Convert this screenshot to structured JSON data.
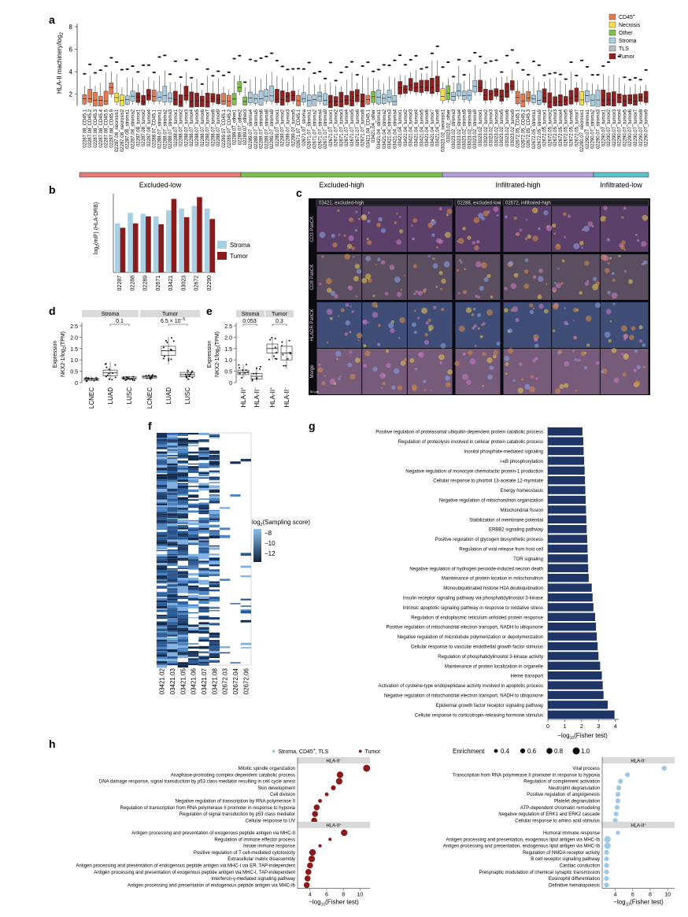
{
  "panels": {
    "a": "a",
    "b": "b",
    "c": "c",
    "d": "d",
    "e": "e",
    "f": "f",
    "g": "g",
    "h": "h"
  },
  "panel_a": {
    "ylabel": "HLA-II machinery/log",
    "ylabel_sub": "2",
    "yticks": [
      "2",
      "4",
      "6",
      "8"
    ],
    "legend": [
      {
        "label": "CD45",
        "sup": "+",
        "color": "#e07b54"
      },
      {
        "label": "Necrosis",
        "sup": "",
        "color": "#f4e04d"
      },
      {
        "label": "Other",
        "sup": "",
        "color": "#7fbf4d"
      },
      {
        "label": "Stroma",
        "sup": "",
        "color": "#a8cbe0"
      },
      {
        "label": "TLS",
        "sup": "",
        "color": "#bdbdbd"
      },
      {
        "label": "Tumor",
        "sup": "",
        "color": "#8b2222"
      }
    ],
    "samples": [
      "02287.08_CD45.1",
      "02287.08_CD45.2",
      "02287.08_CD45.3",
      "02287.08_CD45.4",
      "02287.08_CD45.5",
      "02287.08_CD45.9",
      "02287.08_necrosis1",
      "02287.08_necrosis2",
      "02287.08_stroma1",
      "02287.08_stroma2",
      "02287.08_tumor1",
      "02287.08_tumor2",
      "02287.08_tumor4",
      "02288.07_CD45.1",
      "02288.07_stroma1",
      "02288.07_stroma2",
      "02288.07_stroma3",
      "02288.07_tumor1",
      "02288.07_tumor2",
      "02288.07_tumor3",
      "02288.07_tumor4",
      "02288.07_tumor5",
      "02288.07_tumor6",
      "02288.07_tumor7",
      "02288.07_tumor8",
      "02288.07_tumor9",
      "02289.07_CD45.1",
      "02289.07_CD45.2",
      "02289.07_other1",
      "02289.07_other2",
      "02289.07_other3",
      "02289.07_stroma4",
      "02289.07_stroma5",
      "02289.07_stroma6",
      "02289.07_stroma8",
      "02289.07_stroma9",
      "02289.07_tumor1",
      "02289.07_tumor2",
      "02289.07_tumor3",
      "02289.07_tumor5",
      "02671.07_CD45.1",
      "02671.07_stroma",
      "02671.07_stroma1",
      "02671.07_stroma2",
      "02671.07_stroma4",
      "02671.07_stroma9",
      "02671.07_tumor1",
      "02671.07_tumor2",
      "02671.07_tumor3",
      "02671.07_tumor4",
      "02671.07_tumor5",
      "02671.07_tumor6",
      "02671.07_tumor8",
      "03421.04_CD45.1",
      "03421.04_other",
      "03421.04_stroma1",
      "03421.04_stroma2",
      "03421.04_stroma3",
      "03421.04_stroma4",
      "03421.04_tumor1",
      "03421.04_tumor2",
      "03421.04_tumor3",
      "03421.04_tumor4",
      "03421.04_tumor5",
      "03421.04_tumor6",
      "03421.04_tumor7",
      "03421.04_tumor8",
      "03023.02_necrosis1",
      "03023.02_other",
      "03023.02_stroma3",
      "03023.02_stroma4",
      "03023.02_stroma5",
      "03023.02_stroma8",
      "03023.02_stroma9",
      "03023.02_tumor1",
      "03023.02_tumor2",
      "03023.02_tumor3",
      "03023.02_tumor4",
      "03023.02_tumor5",
      "03023.02_tumor6",
      "03023.02_tumor9",
      "02672.05_CD45.1",
      "02672.05_CD45.2",
      "02672.05_CD45.3",
      "02672.05_stroma1",
      "02672.05_stroma9",
      "02672.05_tumor1",
      "02672.05_tumor2",
      "02672.05_tumor3",
      "02672.05_tumor4",
      "02672.05_tumor5",
      "02672.05_tumor6",
      "02672.05_tumor7",
      "02290.07_necrosis1",
      "02290.07_stroma1",
      "02290.07_stroma2",
      "02290.07_stroma3",
      "02290.07_tumor1",
      "02290.07_tumor2",
      "02290.07_tumor3",
      "02290.07_tumor4",
      "02290.07_tumor5",
      "02290.07_tumor6",
      "02290.07_tumor7",
      "02290.07_tumor8",
      "02290.07_tumor9"
    ],
    "groups": [
      {
        "label": "Excluded-low",
        "color": "#e27b74"
      },
      {
        "label": "Excluded-high",
        "color": "#7fbf4d"
      },
      {
        "label": "Infiltrated-high",
        "color": "#b39ddb"
      },
      {
        "label": "Infiltrated-low",
        "color": "#5bc0c8"
      }
    ]
  },
  "panel_b": {
    "ylabel": "log",
    "ylabel_rest": "(mIF) (HLA-DRB)",
    "categories": [
      "02287",
      "02288",
      "02289",
      "02671",
      "03421",
      "03023",
      "02672",
      "02290"
    ],
    "legend": [
      {
        "label": "Stroma",
        "color": "#a8cfe4"
      },
      {
        "label": "Tumor",
        "color": "#8b1a1a"
      }
    ],
    "stroma": [
      5.6,
      6.8,
      6.7,
      6.4,
      7.1,
      7.3,
      7.6,
      7.3
    ],
    "tumor": [
      5.1,
      5.6,
      6.4,
      5.5,
      8.4,
      6.3,
      8.6,
      6.1
    ],
    "ylim": [
      0,
      9
    ]
  },
  "panel_c": {
    "row_labels": [
      "CD3 PanCK",
      "CD8 PanCK",
      "HLADR PanCK",
      "Merge"
    ],
    "col_titles": [
      "03421, excluded-high",
      "02288, excluded-low",
      "02672, infiltrated-high"
    ],
    "scale": "50 μm"
  },
  "panel_d": {
    "ylabel": "Expression",
    "ylabel2": "NKX2-1/log",
    "ylabel2_rest": "(TPM)",
    "strips": [
      "Stroma",
      "Tumor"
    ],
    "xlabels": [
      "LCNEC",
      "LUAD",
      "LUSC",
      "LCNEC",
      "LUAD",
      "LUSC"
    ],
    "pvals": [
      "0.1",
      "6.5 × 10"
    ],
    "pval_exp": "−5",
    "yticks": [
      "0",
      "0.5",
      "1.0",
      "1.5",
      "2.0",
      "2.5"
    ]
  },
  "panel_e": {
    "strips": [
      "Stroma",
      "Tumor"
    ],
    "pvals": [
      "0.053",
      "0.3"
    ],
    "xlabels": [
      "HLA-II",
      "HLA-II",
      "HLA-II",
      "HLA-II"
    ],
    "xsups": [
      "+",
      "−",
      "+",
      "−"
    ],
    "yticks": [
      "0",
      "0.5",
      "1.0",
      "1.5",
      "2.0",
      "2.5"
    ]
  },
  "panel_f": {
    "legend_title": "log",
    "legend_title_rest": "(Sampling score)",
    "legend_ticks": [
      "−8",
      "−10",
      "−12"
    ],
    "columns": [
      "03421.02",
      "03421.03",
      "03421.05",
      "03421.06",
      "03421.07",
      "03421.08",
      "02672.03",
      "02672.04",
      "02672.06"
    ]
  },
  "panel_g": {
    "xlabel": "−log",
    "xlabel_rest": "(Fisher test)",
    "xticks": [
      "0",
      "1",
      "2",
      "3",
      "4"
    ],
    "terms": [
      {
        "label": "Positive regulation of proteasomal ubiquitin-dependent protein catabolic process",
        "value": 2.05
      },
      {
        "label": "Regulation of proteolysis involved in cellular protein catabolic process",
        "value": 2.1
      },
      {
        "label": "Inositol phosphate-mediated signaling",
        "value": 2.12
      },
      {
        "label": "I-κB phosphorylation",
        "value": 2.15
      },
      {
        "label": "Negative regulation of monocyte chemotactic protein-1 production",
        "value": 2.18
      },
      {
        "label": "Cellular response to phorbol 13-acetate 12-myristate",
        "value": 2.2
      },
      {
        "label": "Energy homeostasis",
        "value": 2.22
      },
      {
        "label": "Negative regulation of mitochondrion organization",
        "value": 2.24
      },
      {
        "label": "Mitochondrial fission",
        "value": 2.26
      },
      {
        "label": "Stabilization of membrane potential",
        "value": 2.28
      },
      {
        "label": "ERBB2 signaling pathway",
        "value": 2.3
      },
      {
        "label": "Positive regulation of glycogen biosynthetic process",
        "value": 2.33
      },
      {
        "label": "Regulation of viral release from host cell",
        "value": 2.35
      },
      {
        "label": "TOR signaling",
        "value": 2.37
      },
      {
        "label": "Negative regulation of hydrogen peroxide-induced neuron death",
        "value": 2.39
      },
      {
        "label": "Maintenance of protein location in mitochondrion",
        "value": 2.42
      },
      {
        "label": "Monoubiquitinated histone H2A deubiquitination",
        "value": 2.6
      },
      {
        "label": "Insulin receptor signaling pathway via phosphatidylinositol 3-kinase",
        "value": 2.65
      },
      {
        "label": "Intrinsic apoptotic signaling pathway in response to oxidative stress",
        "value": 2.7
      },
      {
        "label": "Regulation of endoplasmic reticulum unfolded protein response",
        "value": 2.8
      },
      {
        "label": "Positive regulation of mitochondrial electron transport, NADH to ubiquinone",
        "value": 2.85
      },
      {
        "label": "Negative regulation of microtubule polymerization or depolymerization",
        "value": 2.9
      },
      {
        "label": "Cellular response to vascular endothelial growth factor stimulus",
        "value": 2.95
      },
      {
        "label": "Regulation of phosphatidylinositol 3-kinase activity",
        "value": 3.0
      },
      {
        "label": "Maintenance of protein localization in organelle",
        "value": 3.1
      },
      {
        "label": "Heme transport",
        "value": 3.2
      },
      {
        "label": "Activation of cysteine-type endopeptidase activity involved in apoptotic process",
        "value": 3.25
      },
      {
        "label": "Negative regulation of mitochondrial electron transport, NADH to ubiquinone",
        "value": 3.3
      },
      {
        "label": "Epidermal growth factor receptor signaling pathway",
        "value": 3.55
      },
      {
        "label": "Cellular response to corticotropin-releasing hormone stimulus",
        "value": 3.95
      }
    ]
  },
  "panel_h": {
    "legend_stroma": "Stroma, CD45",
    "legend_stroma_rest": ", TLS",
    "legend_tumor": "Tumor",
    "enrichment_title": "Enrichment",
    "enrichment_sizes": [
      "0.4",
      "0.6",
      "0.8",
      "1.0"
    ],
    "xlabel": "−log",
    "xlabel_rest": "(Fisher test)",
    "strip_neg": "HLA-II",
    "strip_pos": "HLA-II",
    "left_xticks": [
      "4",
      "6",
      "8",
      "10"
    ],
    "right_xticks": [
      "4",
      "6",
      "8",
      "10"
    ],
    "left_neg": [
      {
        "label": "Mitotic spindle organization",
        "value": 10.8,
        "size": 1.0
      },
      {
        "label": "Anaphase-promoting complex-dependent catabolic process",
        "value": 7.6,
        "size": 0.9
      },
      {
        "label": "DNA damage response, signal transduction by p53 class mediator resulting in cell cycle arrest",
        "value": 7.5,
        "size": 0.9
      },
      {
        "label": "Skin development",
        "value": 6.8,
        "size": 0.6
      },
      {
        "label": "Cell division",
        "value": 6.0,
        "size": 0.4
      },
      {
        "label": "Negative regulation of transcription by RNA polymerase II",
        "value": 5.2,
        "size": 0.4
      },
      {
        "label": "Regulation of transcription from RNA polymerase II promoter in response to hypoxia",
        "value": 4.8,
        "size": 0.8
      },
      {
        "label": "Regulation of signal transduction by p53 class mediator",
        "value": 4.6,
        "size": 0.8
      },
      {
        "label": "Cellular response to UV",
        "value": 4.5,
        "size": 0.8
      }
    ],
    "left_pos": [
      {
        "label": "Antigen processing and presentation of exogenous peptide antigen via MHC-II",
        "value": 8.1,
        "size": 0.9
      },
      {
        "label": "Regulation of immune effector process",
        "value": 6.4,
        "size": 0.3
      },
      {
        "label": "Innate immune response",
        "value": 5.2,
        "size": 0.3
      },
      {
        "label": "Positive regulation of T cell-mediated cytotoxicity",
        "value": 4.3,
        "size": 0.9
      },
      {
        "label": "Extracellular matrix disassembly",
        "value": 4.2,
        "size": 0.9
      },
      {
        "label": "Antigen processing and presentation of endogenous peptide antigen via MHC-I via ER, TAP-independent",
        "value": 4.0,
        "size": 0.8
      },
      {
        "label": "Antigen processing and presentation of exogenous peptide antigen via MHC-I, TAP-independent",
        "value": 3.8,
        "size": 0.8
      },
      {
        "label": "Interferon-γ-mediated signaling pathway",
        "value": 3.7,
        "size": 0.8
      },
      {
        "label": "Antigen processing and presentation of endogenous peptide antigen via MHC-Ib",
        "value": 3.6,
        "size": 0.8
      }
    ],
    "right_neg": [
      {
        "label": "Viral process",
        "value": 9.6,
        "size": 0.6
      },
      {
        "label": "Transcription from RNA polymerase II promoter in response to hypoxia",
        "value": 5.4,
        "size": 0.6
      },
      {
        "label": "Regulation of complement activation",
        "value": 4.6,
        "size": 0.6
      },
      {
        "label": "Neutrophil degranulation",
        "value": 4.4,
        "size": 0.6
      },
      {
        "label": "Positive regulation of angiogenesis",
        "value": 4.3,
        "size": 0.6
      },
      {
        "label": "Platelet degranulation",
        "value": 4.3,
        "size": 0.6
      },
      {
        "label": "ATP-dependent chromatin remodeling",
        "value": 4.2,
        "size": 0.6
      },
      {
        "label": "Negative regulation of ERK1 and ERK2 cascade",
        "value": 4.1,
        "size": 0.6
      },
      {
        "label": "Cellular response to amino acid stimulus",
        "value": 4.0,
        "size": 0.6
      }
    ],
    "right_pos": [
      {
        "label": "Humoral immune response",
        "value": 4.3,
        "size": 0.5
      },
      {
        "label": "Antigen processing and presentation, exogenous lipid antigen via MHC-Ib",
        "value": 3.1,
        "size": 0.9
      },
      {
        "label": "Antigen processing and presentation, endogenous lipid antigen via MHC-Ib",
        "value": 3.1,
        "size": 0.9
      },
      {
        "label": "Regulation of NMDA receptor activity",
        "value": 3.0,
        "size": 0.6
      },
      {
        "label": "B cell receptor signaling pathway",
        "value": 3.0,
        "size": 0.6
      },
      {
        "label": "Cardiac conduction",
        "value": 3.0,
        "size": 0.6
      },
      {
        "label": "Presynaptic modulation of chemical synaptic transmission",
        "value": 3.0,
        "size": 0.6
      },
      {
        "label": "Eosinophil differentiation",
        "value": 3.0,
        "size": 0.6
      },
      {
        "label": "Definitive hematopoiesis",
        "value": 3.0,
        "size": 0.6
      }
    ]
  },
  "chart_data": [
    {
      "type": "bar",
      "categories": [
        "02287",
        "02288",
        "02289",
        "02671",
        "03421",
        "03023",
        "02672",
        "02290"
      ],
      "series": [
        {
          "name": "Stroma",
          "values": [
            5.6,
            6.8,
            6.7,
            6.4,
            7.1,
            7.3,
            7.6,
            7.3
          ]
        },
        {
          "name": "Tumor",
          "values": [
            5.1,
            5.6,
            6.4,
            5.5,
            8.4,
            6.3,
            8.6,
            6.1
          ]
        }
      ],
      "ylim": [
        0,
        9
      ]
    },
    {
      "type": "bar",
      "xlim": [
        0,
        4.2
      ]
    }
  ]
}
